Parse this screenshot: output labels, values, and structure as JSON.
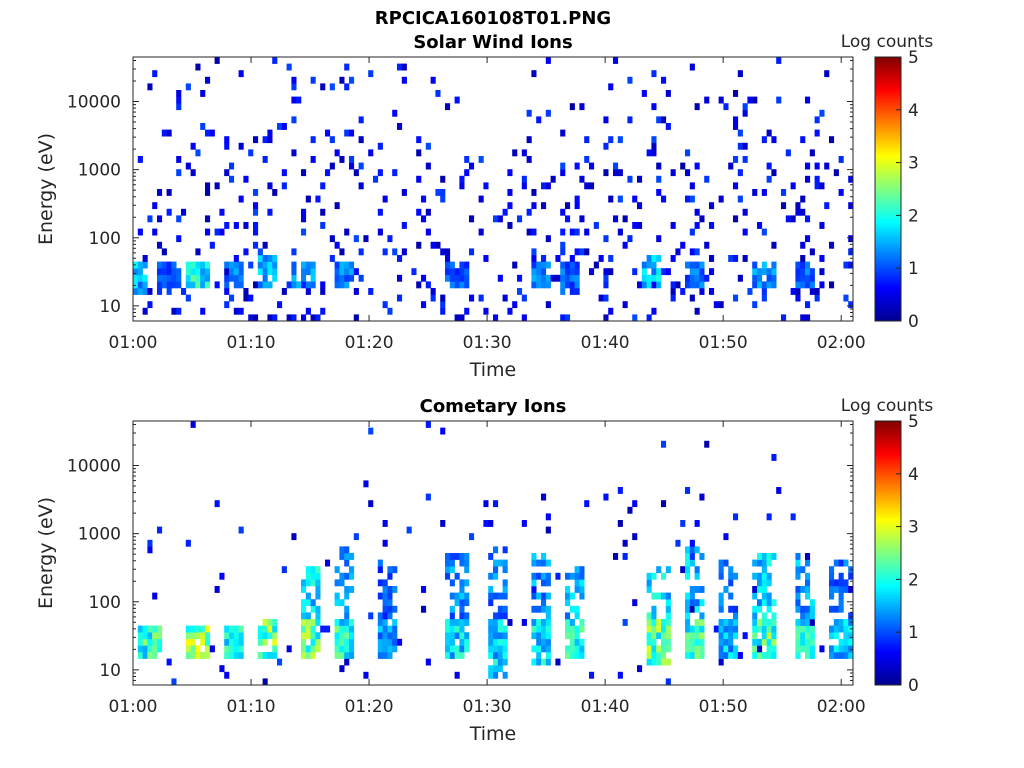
{
  "figure_title": "RPCICA160108T01.PNG",
  "chart_data": [
    {
      "type": "heatmap",
      "title": "Solar Wind Ions",
      "xlabel": "Time",
      "ylabel": "Energy (eV)",
      "x_ticks": [
        "01:00",
        "01:10",
        "01:20",
        "01:30",
        "01:40",
        "01:50",
        "02:00"
      ],
      "x_range": [
        "01:00",
        "02:01"
      ],
      "y_scale": "log",
      "y_ticks": [
        "10",
        "100",
        "1000",
        "10000"
      ],
      "y_range": [
        6,
        45000
      ],
      "colorbar": {
        "label": "Log counts",
        "range": [
          0,
          5
        ],
        "ticks": [
          "0",
          "1",
          "2",
          "3",
          "4",
          "5"
        ],
        "colormap": "jet"
      },
      "bursts": [
        {
          "t_min": 0.5,
          "e_low": 15,
          "e_high": 45,
          "level": 1.8
        },
        {
          "t_min": 3.0,
          "e_low": 15,
          "e_high": 45,
          "level": 1.2
        },
        {
          "t_min": 5.5,
          "e_low": 18,
          "e_high": 40,
          "level": 2.2
        },
        {
          "t_min": 8.5,
          "e_low": 18,
          "e_high": 45,
          "level": 1.4
        },
        {
          "t_min": 11.5,
          "e_low": 20,
          "e_high": 50,
          "level": 1.8
        },
        {
          "t_min": 14.5,
          "e_low": 20,
          "e_high": 45,
          "level": 1.6
        },
        {
          "t_min": 18.0,
          "e_low": 18,
          "e_high": 45,
          "level": 1.4
        },
        {
          "t_min": 27.5,
          "e_low": 20,
          "e_high": 45,
          "level": 1.2
        },
        {
          "t_min": 34.5,
          "e_low": 20,
          "e_high": 45,
          "level": 1.4
        },
        {
          "t_min": 37.0,
          "e_low": 15,
          "e_high": 45,
          "level": 1.3
        },
        {
          "t_min": 44.0,
          "e_low": 18,
          "e_high": 50,
          "level": 1.9
        },
        {
          "t_min": 47.5,
          "e_low": 20,
          "e_high": 45,
          "level": 1.3
        },
        {
          "t_min": 53.5,
          "e_low": 18,
          "e_high": 45,
          "level": 1.6
        },
        {
          "t_min": 57.0,
          "e_low": 18,
          "e_high": 45,
          "level": 1.3
        }
      ]
    },
    {
      "type": "heatmap",
      "title": "Cometary Ions",
      "xlabel": "Time",
      "ylabel": "Energy (eV)",
      "x_ticks": [
        "01:00",
        "01:10",
        "01:20",
        "01:30",
        "01:40",
        "01:50",
        "02:00"
      ],
      "x_range": [
        "01:00",
        "02:01"
      ],
      "y_scale": "log",
      "y_ticks": [
        "10",
        "100",
        "1000",
        "10000"
      ],
      "y_range": [
        6,
        45000
      ],
      "colorbar": {
        "label": "Log counts",
        "range": [
          0,
          5
        ],
        "ticks": [
          "0",
          "1",
          "2",
          "3",
          "4",
          "5"
        ],
        "colormap": "jet"
      },
      "bursts": [
        {
          "t_min": 1.5,
          "e_low": 15,
          "e_high": 45,
          "level": 2.4
        },
        {
          "t_min": 5.5,
          "e_low": 15,
          "e_high": 45,
          "level": 2.9
        },
        {
          "t_min": 8.5,
          "e_low": 15,
          "e_high": 45,
          "level": 2.2
        },
        {
          "t_min": 11.5,
          "e_low": 15,
          "e_high": 50,
          "level": 2.8
        },
        {
          "t_min": 15.0,
          "e_low": 15,
          "e_high": 300,
          "level": 2.7
        },
        {
          "t_min": 18.0,
          "e_low": 15,
          "e_high": 600,
          "level": 2.3
        },
        {
          "t_min": 21.5,
          "e_low": 15,
          "e_high": 400,
          "level": 1.6
        },
        {
          "t_min": 27.5,
          "e_low": 15,
          "e_high": 500,
          "level": 2.0
        },
        {
          "t_min": 31.0,
          "e_low": 8,
          "e_high": 600,
          "level": 1.9
        },
        {
          "t_min": 34.5,
          "e_low": 12,
          "e_high": 500,
          "level": 2.1
        },
        {
          "t_min": 37.5,
          "e_low": 15,
          "e_high": 300,
          "level": 2.3
        },
        {
          "t_min": 44.5,
          "e_low": 12,
          "e_high": 300,
          "level": 2.7
        },
        {
          "t_min": 47.5,
          "e_low": 15,
          "e_high": 600,
          "level": 2.4
        },
        {
          "t_min": 50.5,
          "e_low": 15,
          "e_high": 400,
          "level": 1.8
        },
        {
          "t_min": 53.5,
          "e_low": 15,
          "e_high": 500,
          "level": 2.6
        },
        {
          "t_min": 57.0,
          "e_low": 15,
          "e_high": 500,
          "level": 2.2
        },
        {
          "t_min": 60.0,
          "e_low": 15,
          "e_high": 400,
          "level": 1.8
        }
      ]
    }
  ]
}
